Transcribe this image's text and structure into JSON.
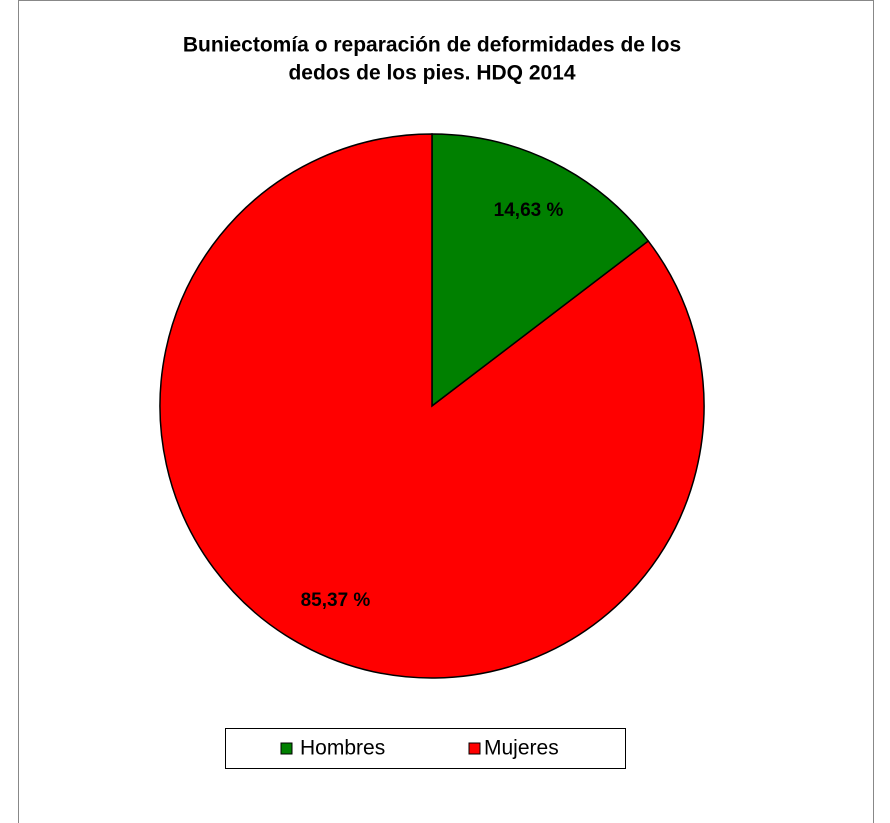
{
  "chart_data": {
    "type": "pie",
    "title": [
      "Buniectomía o reparación de deformidades de los",
      "dedos de los pies. HDQ  2014"
    ],
    "categories": [
      "Hombres",
      "Mujeres"
    ],
    "values": [
      14.63,
      85.37
    ],
    "value_labels": [
      "14,63 %",
      "85,37 %"
    ],
    "colors": [
      "#008000",
      "#ff0000"
    ],
    "legend": "bottom"
  }
}
